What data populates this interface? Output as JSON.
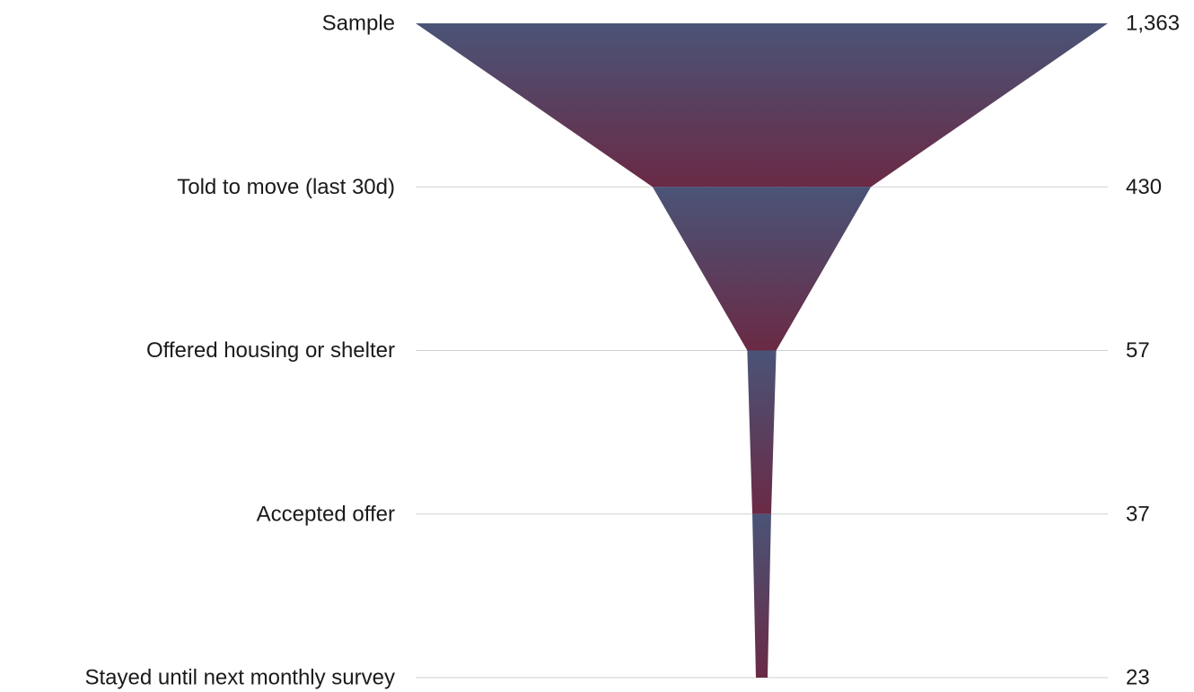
{
  "chart_data": {
    "type": "funnel",
    "title": "",
    "stages": [
      {
        "label": "Sample",
        "value": 1363,
        "display": "1,363"
      },
      {
        "label": "Told to move (last 30d)",
        "value": 430,
        "display": "430"
      },
      {
        "label": "Offered housing or shelter",
        "value": 57,
        "display": "57"
      },
      {
        "label": "Accepted offer",
        "value": 37,
        "display": "37"
      },
      {
        "label": "Stayed until next monthly survey",
        "value": 23,
        "display": "23"
      }
    ],
    "colors": {
      "top": "#4a5477",
      "bottom": "#6a2a45",
      "grid": "#cfcfcf",
      "text": "#1a1a1a"
    },
    "grid": true
  }
}
